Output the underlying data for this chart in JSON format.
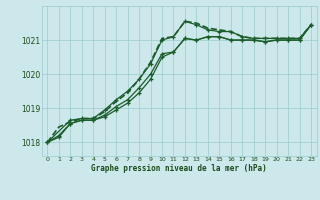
{
  "background_color": "#cce8ea",
  "grid_color": "#99cccc",
  "line_color": "#1a5c2a",
  "xlabel": "Graphe pression niveau de la mer (hPa)",
  "xlim": [
    -0.5,
    23.5
  ],
  "ylim": [
    1017.6,
    1022.0
  ],
  "yticks": [
    1018,
    1019,
    1020,
    1021
  ],
  "xticks": [
    0,
    1,
    2,
    3,
    4,
    5,
    6,
    7,
    8,
    9,
    10,
    11,
    12,
    13,
    14,
    15,
    16,
    17,
    18,
    19,
    20,
    21,
    22,
    23
  ],
  "series": [
    {
      "x": [
        0,
        1,
        2,
        3,
        4,
        5,
        6,
        7,
        8,
        9,
        10,
        11,
        12,
        13,
        14,
        15,
        16,
        17,
        18,
        19,
        20,
        21,
        22,
        23
      ],
      "y": [
        1018.0,
        1018.15,
        1018.55,
        1018.65,
        1018.65,
        1018.75,
        1018.95,
        1019.15,
        1019.45,
        1019.85,
        1020.5,
        1020.65,
        1021.05,
        1021.0,
        1021.1,
        1021.1,
        1021.0,
        1021.0,
        1021.0,
        1020.95,
        1021.0,
        1021.0,
        1021.0,
        1021.45
      ],
      "lw": 0.9,
      "marker": true,
      "linestyle": "-"
    },
    {
      "x": [
        0,
        1,
        2,
        3,
        4,
        5,
        6,
        7,
        8,
        9,
        10,
        11,
        12,
        13,
        14,
        15,
        16,
        17,
        18,
        19,
        20,
        21,
        22,
        23
      ],
      "y": [
        1018.0,
        1018.2,
        1018.55,
        1018.65,
        1018.65,
        1018.8,
        1019.05,
        1019.25,
        1019.6,
        1020.0,
        1020.6,
        1020.65,
        1021.05,
        1021.0,
        1021.1,
        1021.1,
        1021.0,
        1021.0,
        1021.0,
        1020.95,
        1021.0,
        1021.0,
        1021.0,
        1021.45
      ],
      "lw": 0.9,
      "marker": true,
      "linestyle": "-"
    },
    {
      "x": [
        0,
        2,
        3,
        4,
        5,
        6,
        7,
        8,
        9,
        10,
        11,
        12,
        13,
        14,
        15,
        16,
        17,
        18,
        19,
        20,
        21,
        22,
        23
      ],
      "y": [
        1018.0,
        1018.65,
        1018.7,
        1018.7,
        1018.95,
        1019.25,
        1019.5,
        1019.85,
        1020.3,
        1021.0,
        1021.1,
        1021.55,
        1021.45,
        1021.3,
        1021.25,
        1021.25,
        1021.1,
        1021.05,
        1021.05,
        1021.05,
        1021.05,
        1021.05,
        1021.45
      ],
      "lw": 0.9,
      "marker": true,
      "linestyle": "-"
    },
    {
      "x": [
        0,
        1,
        2,
        3,
        4,
        5,
        6,
        7,
        8,
        9,
        10,
        11,
        12,
        13,
        14,
        15,
        16,
        17,
        18,
        19,
        20,
        21,
        22,
        23
      ],
      "y": [
        1018.0,
        1018.45,
        1018.6,
        1018.7,
        1018.7,
        1018.9,
        1019.2,
        1019.45,
        1019.85,
        1020.35,
        1021.05,
        1021.1,
        1021.55,
        1021.5,
        1021.35,
        1021.3,
        1021.25,
        1021.1,
        1021.05,
        1021.05,
        1021.05,
        1021.05,
        1021.05,
        1021.45
      ],
      "lw": 1.2,
      "marker": false,
      "linestyle": "--"
    }
  ],
  "markersize": 3.5,
  "markeredgewidth": 0.9
}
